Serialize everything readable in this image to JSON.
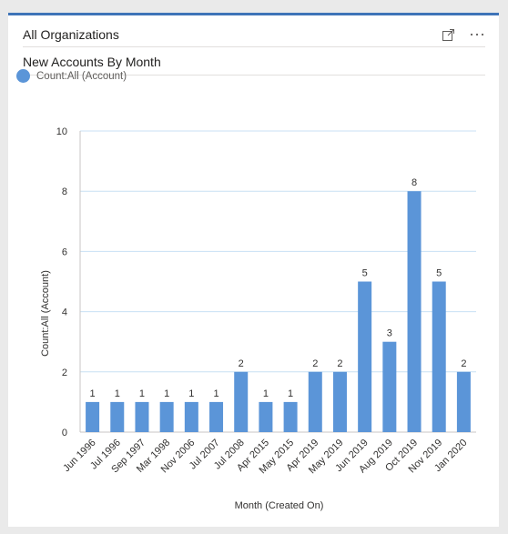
{
  "header": {
    "title": "All Organizations",
    "expand_icon": "expand-icon",
    "more_icon": "more-options-icon",
    "more_label": "···"
  },
  "subheader": {
    "title": "New Accounts By Month"
  },
  "legend": {
    "label": "Count:All (Account)",
    "color": "#5b95d8"
  },
  "chart_data": {
    "type": "bar",
    "title": "New Accounts By Month",
    "xlabel": "Month (Created On)",
    "ylabel": "Count:All (Account)",
    "ylim": [
      0,
      10
    ],
    "yticks": [
      0,
      2,
      4,
      6,
      8,
      10
    ],
    "grid": true,
    "legend_position": "top-left",
    "categories": [
      "Jun 1996",
      "Jul 1996",
      "Sep 1997",
      "Mar 1998",
      "Nov 2006",
      "Jul 2007",
      "Jul 2008",
      "Apr 2015",
      "May 2015",
      "Apr 2019",
      "May 2019",
      "Jun 2019",
      "Aug 2019",
      "Oct 2019",
      "Nov 2019",
      "Jan 2020"
    ],
    "series": [
      {
        "name": "Count:All (Account)",
        "values": [
          1,
          1,
          1,
          1,
          1,
          1,
          2,
          1,
          1,
          2,
          2,
          5,
          3,
          8,
          5,
          2
        ]
      }
    ],
    "bar_color": "#5b95d8",
    "gridline_color": "#c8e0f4"
  }
}
